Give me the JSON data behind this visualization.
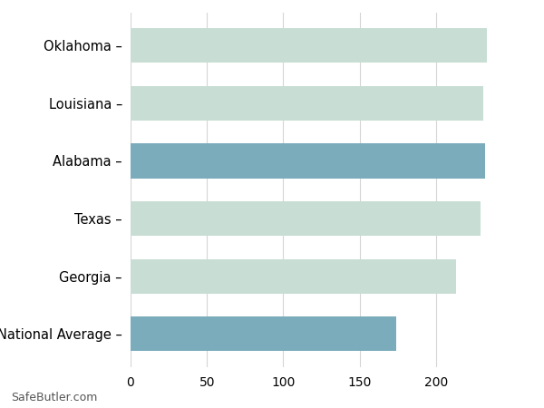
{
  "categories": [
    "Oklahoma",
    "Louisiana",
    "Alabama",
    "Texas",
    "Georgia",
    "National Average"
  ],
  "values": [
    233,
    231,
    232,
    229,
    213,
    174
  ],
  "bar_colors": [
    "#c8ddd3",
    "#c8ddd3",
    "#7aacbc",
    "#c8ddd3",
    "#c8ddd3",
    "#7aacbc"
  ],
  "background_color": "#ffffff",
  "grid_color": "#d5d5d5",
  "xlim": [
    0,
    260
  ],
  "xticks": [
    0,
    50,
    100,
    150,
    200
  ],
  "footnote": "SafeButler.com",
  "bar_height": 0.6,
  "label_fontsize": 10.5,
  "tick_fontsize": 10,
  "footnote_fontsize": 9
}
